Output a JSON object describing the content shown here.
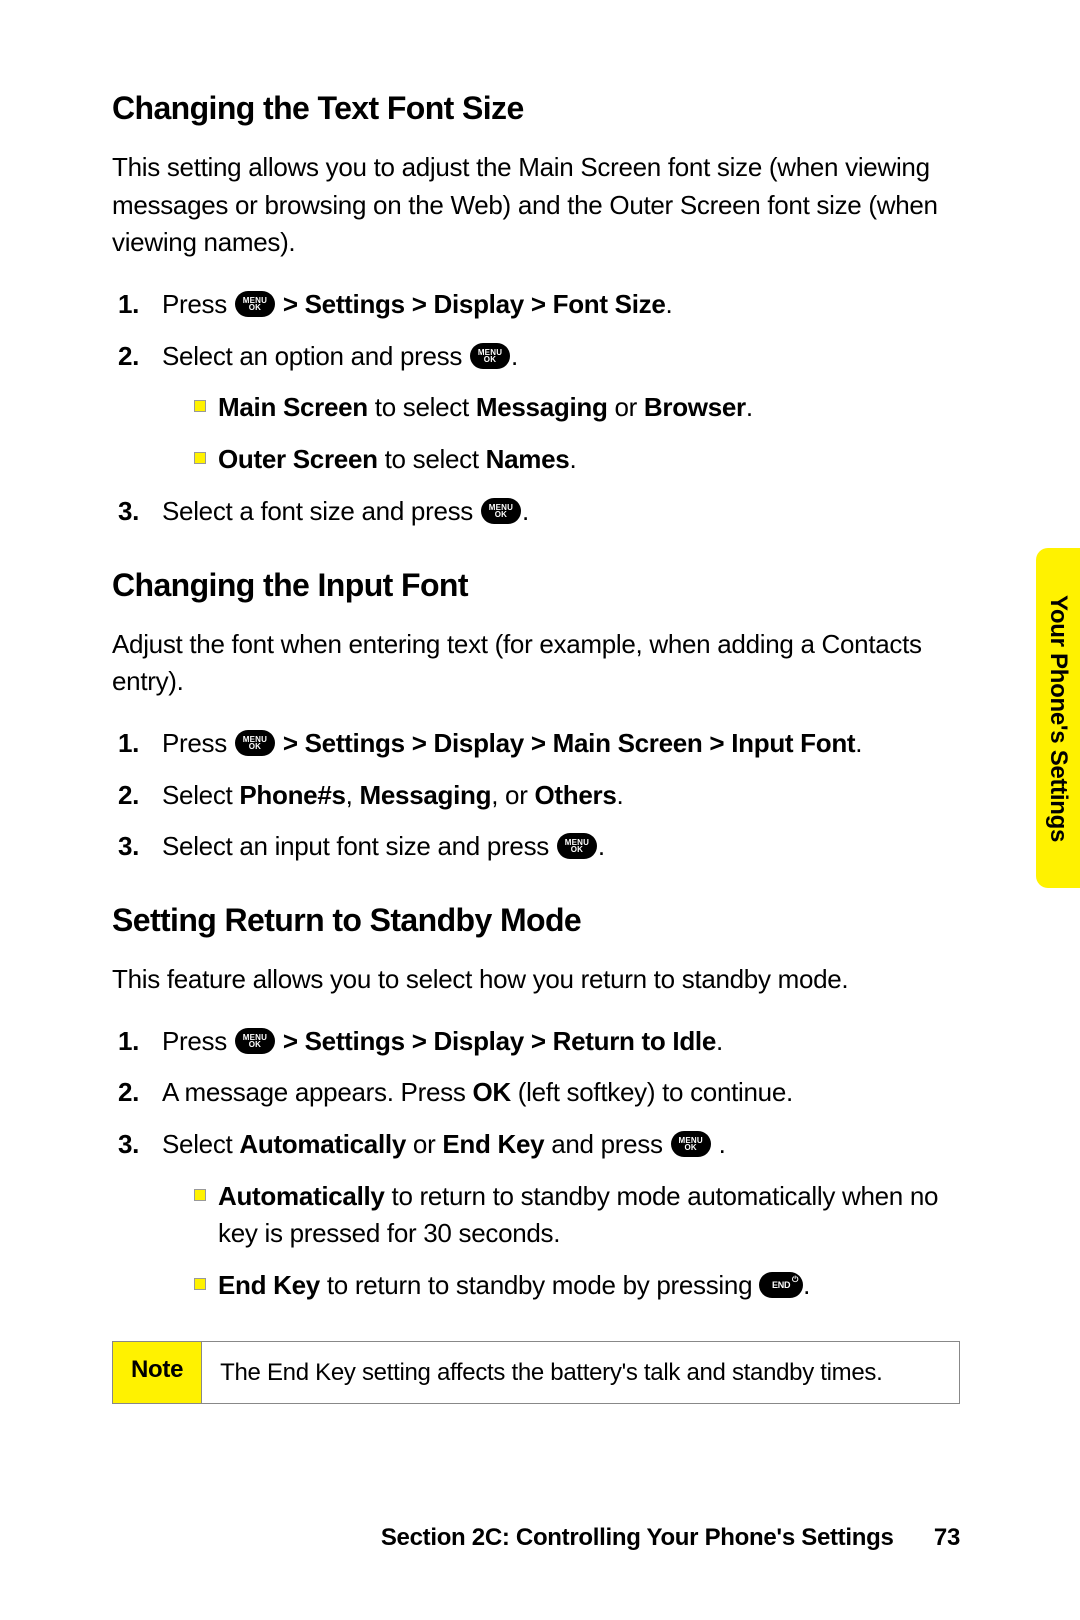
{
  "sideTab": "Your Phone's Settings",
  "s1": {
    "heading": "Changing the Text Font Size",
    "intro": "This setting allows you to adjust the Main Screen font size (when viewing messages or browsing on the Web) and the Outer Screen font size (when viewing names).",
    "step1_a": "Press ",
    "step1_b": " > Settings > Display > Font Size",
    "step2_a": "Select an option and press ",
    "sub1_a": "Main Screen",
    "sub1_b": " to select ",
    "sub1_c": "Messaging",
    "sub1_d": " or ",
    "sub1_e": "Browser",
    "sub2_a": "Outer Screen",
    "sub2_b": " to select ",
    "sub2_c": "Names",
    "step3_a": "Select a font size and press "
  },
  "s2": {
    "heading": "Changing the Input Font",
    "intro": "Adjust the font when entering text (for example, when adding a Contacts entry).",
    "step1_a": "Press ",
    "step1_b": " > Settings > Display > Main Screen > Input Font",
    "step2_a": "Select ",
    "step2_b": "Phone#s",
    "step2_c": ", ",
    "step2_d": "Messaging",
    "step2_e": ", or ",
    "step2_f": "Others",
    "step3_a": "Select an input font size and press "
  },
  "s3": {
    "heading": "Setting Return to Standby Mode",
    "intro": "This feature allows you to select how you return to standby mode.",
    "step1_a": "Press ",
    "step1_b": " > Settings > Display > Return to Idle",
    "step2_a": "A message appears. Press ",
    "step2_b": "OK",
    "step2_c": " (left softkey) to continue.",
    "step3_a": "Select ",
    "step3_b": "Automatically",
    "step3_c": " or ",
    "step3_d": "End Key",
    "step3_e": " and press ",
    "sub1_a": "Automatically",
    "sub1_b": " to return to standby mode automatically when no key is pressed for 30 seconds.",
    "sub2_a": "End Key",
    "sub2_b": " to return to standby mode by pressing "
  },
  "note": {
    "label": "Note",
    "text": "The End Key setting affects the battery's talk and standby times."
  },
  "footer": {
    "section": "Section 2C: Controlling Your Phone's Settings",
    "page": "73"
  },
  "icons": {
    "menuTop": "MENU",
    "menuBottom": "OK",
    "end": "END"
  }
}
